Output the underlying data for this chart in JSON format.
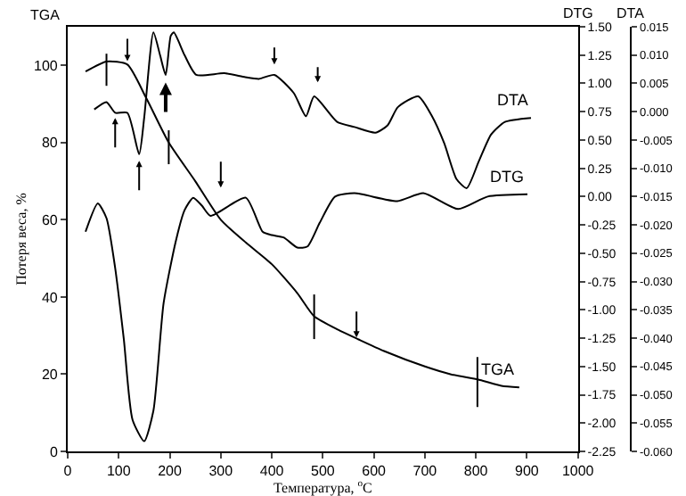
{
  "chart_data": {
    "type": "line",
    "xlabel": "Температура, $^{o}$C",
    "ylabel": "Потеря веса, %",
    "y2label": "DTG",
    "y3label": "DTA",
    "annotations": [
      "TGA"
    ],
    "xlim": [
      0,
      1000
    ],
    "xticks": [
      0,
      100,
      200,
      300,
      400,
      500,
      600,
      700,
      800,
      900,
      1000
    ],
    "ylim": [
      0,
      110
    ],
    "yticks": [
      0,
      20,
      40,
      60,
      80,
      100
    ],
    "y2lim": [
      -2.25,
      1.5
    ],
    "y2ticks": [
      {
        "value": 1.5,
        "label": "1.50"
      },
      1.25,
      {
        "value": 1,
        "label": "1.00"
      },
      0.75,
      {
        "value": 0.5,
        "label": "0.50"
      },
      0.25,
      {
        "value": 0,
        "label": "0.00"
      },
      -0.25,
      {
        "value": -0.5,
        "label": "-0.50"
      },
      -0.75,
      {
        "value": -1,
        "label": "-1.00"
      },
      -1.25,
      {
        "value": -1.5,
        "label": "-1.50"
      },
      -1.75,
      {
        "value": -2,
        "label": "-2.00"
      },
      -2.25
    ],
    "y3lim": [
      -0.06,
      0.015
    ],
    "y3ticks": [
      {
        "value": 0.015,
        "label": "0.015"
      },
      {
        "value": 0.01,
        "label": "0.010"
      },
      {
        "value": 0.005,
        "label": "0.005"
      },
      {
        "value": 0,
        "label": "0.000"
      },
      {
        "value": -0.005,
        "label": "-0.005"
      },
      {
        "value": -0.01,
        "label": "-0.010"
      },
      {
        "value": -0.015,
        "label": "-0.015"
      },
      {
        "value": -0.02,
        "label": "-0.020"
      },
      {
        "value": -0.025,
        "label": "-0.025"
      },
      {
        "value": -0.03,
        "label": "-0.030"
      },
      {
        "value": -0.035,
        "label": "-0.035"
      },
      {
        "value": -0.04,
        "label": "-0.040"
      },
      {
        "value": -0.045,
        "label": "-0.045"
      },
      {
        "value": -0.05,
        "label": "-0.050"
      },
      {
        "value": -0.055,
        "label": "-0.055"
      },
      {
        "value": -0.06,
        "label": "-0.060"
      }
    ],
    "grid": false,
    "legend": false,
    "series": [
      {
        "name": "TGA",
        "color": "#000000",
        "x": [
          35,
          76,
          117,
          154,
          198,
          250,
          300,
          350,
          400,
          450,
          483,
          530,
          570,
          620,
          700,
          750,
          808,
          850,
          885
        ],
        "values": [
          98.4,
          101,
          100.2,
          91.5,
          80,
          70,
          60,
          54,
          48.5,
          41,
          35,
          31.5,
          29,
          26,
          22,
          20,
          18.5,
          17,
          16.6
        ]
      },
      {
        "name": "DTG",
        "color": "#000000",
        "axis": "y2",
        "x": [
          35,
          59,
          76,
          93,
          110,
          127,
          150,
          168,
          188,
          212,
          229,
          246,
          263,
          280,
          349,
          382,
          400,
          423,
          450,
          470,
          494,
          524,
          562,
          646,
          697,
          765,
          823,
          901
        ],
        "values": [
          -0.31,
          -0.06,
          -0.19,
          -0.63,
          -1.26,
          -1.97,
          -2.16,
          -1.89,
          -0.94,
          -0.39,
          -0.12,
          -0.01,
          -0.08,
          -0.17,
          -0.01,
          -0.31,
          -0.34,
          -0.36,
          -0.45,
          -0.44,
          -0.23,
          0,
          0.03,
          -0.04,
          0.03,
          -0.11,
          0,
          0.02
        ]
      },
      {
        "name": "DTA",
        "color": "#000000",
        "axis": "y3",
        "x": [
          52,
          76,
          93,
          117,
          140,
          150,
          168,
          181,
          192,
          202,
          208,
          229,
          252,
          307,
          348,
          375,
          405,
          443,
          467,
          483,
          528,
          562,
          603,
          627,
          647,
          687,
          714,
          738,
          762,
          782,
          806,
          830,
          857,
          908
        ],
        "values": [
          0.0004,
          0.0017,
          -0.0002,
          -0.0002,
          -0.0075,
          -0.001,
          0.014,
          0.01,
          0.0065,
          0.0134,
          0.014,
          0.01,
          0.0065,
          0.0068,
          0.0061,
          0.0058,
          0.0065,
          0.0033,
          -0.0008,
          0.0027,
          -0.0018,
          -0.0027,
          -0.0037,
          -0.0024,
          0.0008,
          0.0027,
          -0.0008,
          -0.0056,
          -0.0119,
          -0.0135,
          -0.0087,
          -0.004,
          -0.0018,
          -0.0011
        ]
      }
    ]
  }
}
